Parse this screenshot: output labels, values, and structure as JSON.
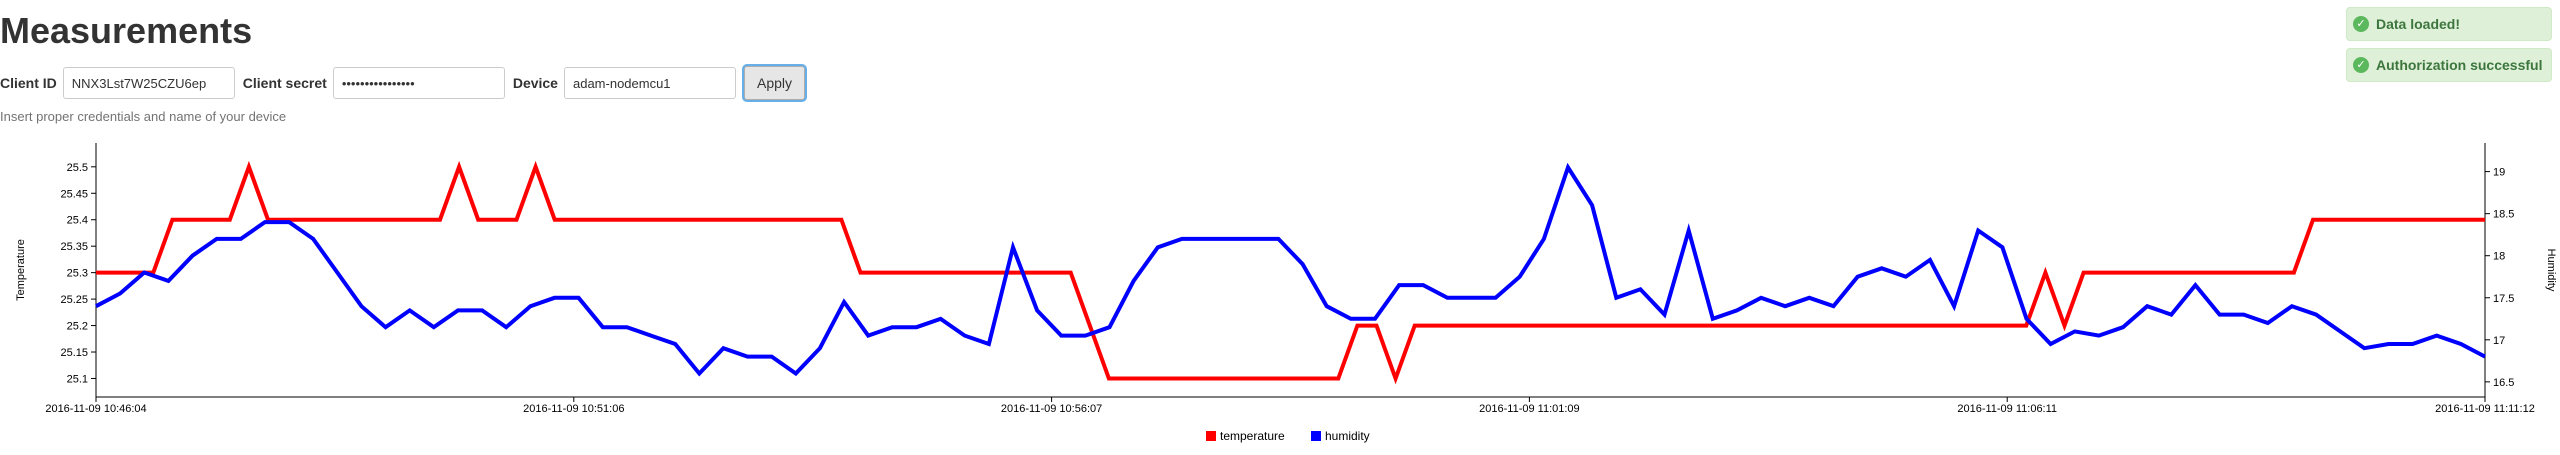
{
  "page": {
    "title": "Measurements"
  },
  "form": {
    "client_id_label": "Client ID",
    "client_id_value": "NNX3Lst7W25CZU6ep",
    "client_secret_label": "Client secret",
    "client_secret_value": "••••••••••••••••",
    "device_label": "Device",
    "device_value": "adam-nodemcu1",
    "apply_label": "Apply",
    "help": "Insert proper credentials and name of your device"
  },
  "notifications": [
    {
      "text": "Data loaded!",
      "icon": "check-circle-icon",
      "color": "#dff0d8"
    },
    {
      "text": "Authorization successful",
      "icon": "check-circle-icon",
      "color": "#dff0d8"
    }
  ],
  "chart_data": {
    "type": "line",
    "title": "",
    "xlabel": "",
    "x_tick_labels": [
      "2016-11-09 10:46:04",
      "2016-11-09 10:51:06",
      "2016-11-09 10:56:07",
      "2016-11-09 11:01:09",
      "2016-11-09 11:06:11",
      "2016-11-09 11:11:12"
    ],
    "y_left": {
      "label": "Temperature",
      "range": [
        25.065,
        25.545
      ],
      "ticks": [
        25.1,
        25.15,
        25.2,
        25.25,
        25.3,
        25.35,
        25.4,
        25.45,
        25.5
      ],
      "tick_labels": [
        "25.1",
        "25.15",
        "25.2",
        "25.25",
        "25.3",
        "25.35",
        "25.4",
        "25.45",
        "25.5"
      ]
    },
    "y_right": {
      "label": "Humidity",
      "range": [
        16.32,
        19.34
      ],
      "ticks": [
        16.5,
        17,
        17.5,
        18,
        18.5,
        19
      ],
      "tick_labels": [
        "16.5",
        "17",
        "17.5",
        "18",
        "18.5",
        "19"
      ]
    },
    "legend_position": "bottom-center",
    "grid": false,
    "series": [
      {
        "name": "temperature",
        "axis": "left",
        "color": "#ff0000",
        "values": [
          25.3,
          25.3,
          25.3,
          25.3,
          25.4,
          25.4,
          25.4,
          25.4,
          25.5,
          25.4,
          25.4,
          25.4,
          25.4,
          25.4,
          25.4,
          25.4,
          25.4,
          25.4,
          25.4,
          25.5,
          25.4,
          25.4,
          25.4,
          25.5,
          25.4,
          25.4,
          25.4,
          25.4,
          25.4,
          25.4,
          25.4,
          25.4,
          25.4,
          25.4,
          25.4,
          25.4,
          25.4,
          25.4,
          25.4,
          25.4,
          25.3,
          25.3,
          25.3,
          25.3,
          25.3,
          25.3,
          25.3,
          25.3,
          25.3,
          25.3,
          25.3,
          25.3,
          25.2,
          25.1,
          25.1,
          25.1,
          25.1,
          25.1,
          25.1,
          25.1,
          25.1,
          25.1,
          25.1,
          25.1,
          25.1,
          25.1,
          25.2,
          25.2,
          25.1,
          25.2,
          25.2,
          25.2,
          25.2,
          25.2,
          25.2,
          25.2,
          25.2,
          25.2,
          25.2,
          25.2,
          25.2,
          25.2,
          25.2,
          25.2,
          25.2,
          25.2,
          25.2,
          25.2,
          25.2,
          25.2,
          25.2,
          25.2,
          25.2,
          25.2,
          25.2,
          25.2,
          25.2,
          25.2,
          25.2,
          25.2,
          25.2,
          25.2,
          25.3,
          25.2,
          25.3,
          25.3,
          25.3,
          25.3,
          25.3,
          25.3,
          25.3,
          25.3,
          25.3,
          25.3,
          25.3,
          25.3,
          25.4,
          25.4,
          25.4,
          25.4,
          25.4,
          25.4,
          25.4,
          25.4,
          25.4,
          25.4
        ]
      },
      {
        "name": "humidity",
        "axis": "right",
        "color": "#0000ff",
        "values": [
          17.4,
          17.55,
          17.8,
          17.7,
          18,
          18.2,
          18.2,
          18.4,
          18.4,
          18.2,
          17.8,
          17.4,
          17.15,
          17.35,
          17.15,
          17.35,
          17.35,
          17.15,
          17.4,
          17.5,
          17.5,
          17.15,
          17.15,
          17.05,
          16.95,
          16.6,
          16.9,
          16.8,
          16.8,
          16.6,
          16.9,
          17.45,
          17.05,
          17.15,
          17.15,
          17.25,
          17.05,
          16.95,
          18.1,
          17.35,
          17.05,
          17.05,
          17.15,
          17.7,
          18.1,
          18.2,
          18.2,
          18.2,
          18.2,
          18.2,
          17.9,
          17.4,
          17.25,
          17.25,
          17.65,
          17.65,
          17.5,
          17.5,
          17.5,
          17.75,
          18.2,
          19.05,
          18.6,
          17.5,
          17.6,
          17.3,
          18.3,
          17.25,
          17.35,
          17.5,
          17.4,
          17.5,
          17.4,
          17.75,
          17.85,
          17.75,
          17.95,
          17.4,
          18.3,
          18.1,
          17.25,
          16.95,
          17.1,
          17.05,
          17.15,
          17.4,
          17.3,
          17.65,
          17.3,
          17.3,
          17.2,
          17.4,
          17.3,
          17.1,
          16.9,
          16.95,
          16.95,
          17.05,
          16.95,
          16.8
        ]
      }
    ]
  }
}
